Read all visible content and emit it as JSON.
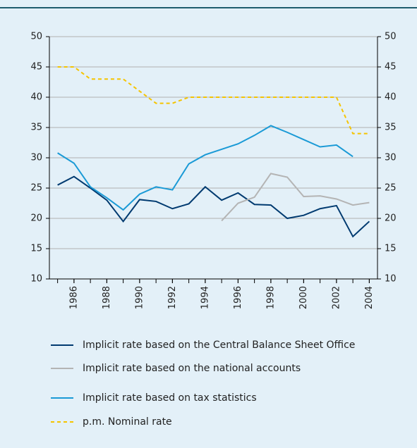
{
  "chart_data": {
    "type": "line",
    "x": [
      1985,
      1986,
      1987,
      1988,
      1989,
      1990,
      1991,
      1992,
      1993,
      1994,
      1995,
      1996,
      1997,
      1998,
      1999,
      2000,
      2001,
      2002,
      2003,
      2004
    ],
    "xlim": [
      1984.5,
      2004.5
    ],
    "xticks": [
      1986,
      1988,
      1990,
      1992,
      1994,
      1996,
      1998,
      2000,
      2002,
      2004
    ],
    "ylim": [
      10,
      50
    ],
    "yticks": [
      10,
      15,
      20,
      25,
      30,
      35,
      40,
      45,
      50
    ],
    "y2lim": [
      10,
      50
    ],
    "y2ticks": [
      10,
      15,
      20,
      25,
      30,
      35,
      40,
      45,
      50
    ],
    "grid": true,
    "series": [
      {
        "name": "Implicit rate based on the Central Balance Sheet Office",
        "color": "#003a70",
        "values": [
          25.5,
          26.9,
          25.0,
          23.0,
          19.5,
          23.1,
          22.8,
          21.6,
          22.4,
          25.2,
          23.0,
          24.2,
          22.3,
          22.2,
          20.0,
          20.5,
          21.6,
          22.1,
          17.0,
          19.5
        ]
      },
      {
        "name": "Implicit rate based on the national accounts",
        "color": "#b4b4b4",
        "values": [
          null,
          null,
          null,
          null,
          null,
          null,
          null,
          null,
          null,
          null,
          19.6,
          22.5,
          23.5,
          27.4,
          26.8,
          23.6,
          23.7,
          23.2,
          22.2,
          22.6
        ]
      },
      {
        "name": "Implicit rate based on tax statistics",
        "color": "#1a9ad6",
        "values": [
          30.8,
          29.1,
          25.2,
          23.4,
          21.4,
          24.0,
          25.2,
          24.7,
          29.0,
          30.5,
          31.4,
          32.3,
          33.7,
          35.3,
          34.2,
          33.0,
          31.8,
          32.1,
          30.2,
          null
        ]
      },
      {
        "name": "p.m. Nominal rate",
        "color": "#f5c400",
        "dashed": true,
        "values": [
          45,
          45,
          43,
          43,
          43,
          41,
          39,
          39,
          40,
          40,
          40,
          40,
          40,
          40,
          40,
          40,
          40,
          40,
          34,
          34
        ]
      }
    ]
  }
}
